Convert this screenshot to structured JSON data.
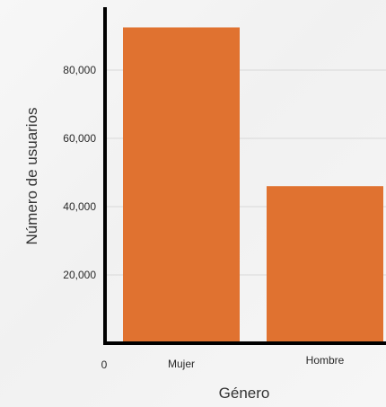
{
  "chart_data": {
    "type": "bar",
    "categories": [
      "Mujer",
      "Hombre"
    ],
    "values": [
      92500,
      46000
    ],
    "xlabel": "Género",
    "ylabel": "Número de usuarios",
    "ylim": [
      0,
      100000
    ],
    "y_ticks": [
      20000,
      40000,
      60000,
      80000
    ],
    "y_tick_labels": [
      "20,000",
      "40,000",
      "60,000",
      "80,000"
    ],
    "origin_label": "0",
    "bar_color": "#E07230",
    "grid": true
  }
}
